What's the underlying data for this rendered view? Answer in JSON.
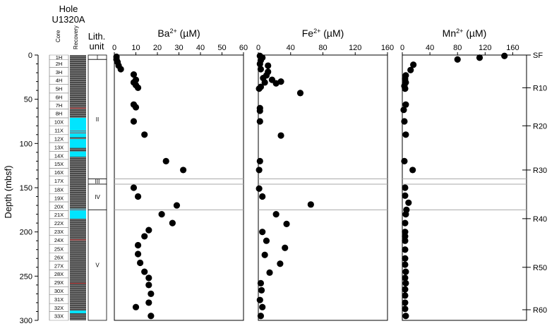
{
  "chart_data": {
    "type": "scatter",
    "hole_title_line1": "Hole",
    "hole_title_line2": "U1320A",
    "ylabel": "Depth (mbsf)",
    "ylim": [
      0,
      300
    ],
    "yticks": [
      "0",
      "50",
      "100",
      "150",
      "200",
      "250",
      "300"
    ],
    "column_headers": {
      "core": "Core",
      "recovery": "Recovery",
      "lith_line1": "Lith.",
      "lith_line2": "unit"
    },
    "cores": [
      {
        "label": "1H",
        "top": 0,
        "bottom": 5
      },
      {
        "label": "2H",
        "top": 5,
        "bottom": 14
      },
      {
        "label": "3H",
        "top": 14,
        "bottom": 24
      },
      {
        "label": "4H",
        "top": 24,
        "bottom": 33
      },
      {
        "label": "5H",
        "top": 33,
        "bottom": 43
      },
      {
        "label": "6H",
        "top": 43,
        "bottom": 52
      },
      {
        "label": "7H",
        "top": 52,
        "bottom": 61
      },
      {
        "label": "8H",
        "top": 61,
        "bottom": 71
      },
      {
        "label": "10X",
        "top": 71,
        "bottom": 80
      },
      {
        "label": "11X",
        "top": 80,
        "bottom": 90
      },
      {
        "label": "12X",
        "top": 90,
        "bottom": 99
      },
      {
        "label": "13X",
        "top": 99,
        "bottom": 109
      },
      {
        "label": "14X",
        "top": 109,
        "bottom": 118
      },
      {
        "label": "15X",
        "top": 118,
        "bottom": 128
      },
      {
        "label": "16X",
        "top": 128,
        "bottom": 137
      },
      {
        "label": "17X",
        "top": 137,
        "bottom": 147
      },
      {
        "label": "18X",
        "top": 147,
        "bottom": 157
      },
      {
        "label": "19X",
        "top": 157,
        "bottom": 166
      },
      {
        "label": "20X",
        "top": 166,
        "bottom": 176
      },
      {
        "label": "21X",
        "top": 176,
        "bottom": 185
      },
      {
        "label": "22X",
        "top": 185,
        "bottom": 195
      },
      {
        "label": "23X",
        "top": 195,
        "bottom": 204
      },
      {
        "label": "24X",
        "top": 204,
        "bottom": 214
      },
      {
        "label": "25X",
        "top": 214,
        "bottom": 224
      },
      {
        "label": "26X",
        "top": 224,
        "bottom": 233
      },
      {
        "label": "27X",
        "top": 233,
        "bottom": 243
      },
      {
        "label": "28X",
        "top": 243,
        "bottom": 252
      },
      {
        "label": "29X",
        "top": 252,
        "bottom": 262
      },
      {
        "label": "30X",
        "top": 262,
        "bottom": 271
      },
      {
        "label": "31X",
        "top": 271,
        "bottom": 281
      },
      {
        "label": "32X",
        "top": 281,
        "bottom": 290
      },
      {
        "label": "33X",
        "top": 290,
        "bottom": 300
      }
    ],
    "recovery_colors": {
      "core": "#4a4a4a",
      "stripe": "#bdbdbd",
      "disturbed": "#00e5ff",
      "accent": "#e03030"
    },
    "recovery_disturbed_intervals": [
      [
        71,
        87
      ],
      [
        87,
        93
      ],
      [
        95,
        105
      ],
      [
        109,
        115
      ],
      [
        174,
        185
      ],
      [
        289,
        292
      ]
    ],
    "lith_units": [
      {
        "label": "I",
        "top": 0,
        "bottom": 5
      },
      {
        "label": "II",
        "top": 5,
        "bottom": 140
      },
      {
        "label": "III",
        "top": 140,
        "bottom": 146
      },
      {
        "label": "IV",
        "top": 146,
        "bottom": 175
      },
      {
        "label": "V",
        "top": 175,
        "bottom": 300
      }
    ],
    "unit_boundaries": [
      140,
      146,
      175
    ],
    "panels": [
      {
        "title": "Ba",
        "title_sup": "2+",
        "title_unit": " (µM)",
        "xlim": [
          0,
          60
        ],
        "xticks": [
          "0",
          "10",
          "20",
          "30",
          "40",
          "50",
          "60"
        ],
        "points": [
          [
            1,
            2
          ],
          [
            1,
            5
          ],
          [
            1.5,
            8
          ],
          [
            2,
            12
          ],
          [
            3,
            16
          ],
          [
            9,
            22
          ],
          [
            10,
            28
          ],
          [
            9,
            31
          ],
          [
            10,
            34
          ],
          [
            11,
            37
          ],
          [
            9,
            56
          ],
          [
            10,
            59
          ],
          [
            9,
            75
          ],
          [
            14,
            90
          ],
          [
            24,
            120
          ],
          [
            32,
            130
          ],
          [
            9,
            150
          ],
          [
            11,
            160
          ],
          [
            29,
            170
          ],
          [
            22,
            180
          ],
          [
            27,
            190
          ],
          [
            16,
            198
          ],
          [
            14,
            205
          ],
          [
            11,
            215
          ],
          [
            11,
            225
          ],
          [
            12,
            235
          ],
          [
            14,
            245
          ],
          [
            16,
            252
          ],
          [
            16,
            260
          ],
          [
            17,
            270
          ],
          [
            16,
            280
          ],
          [
            10,
            285
          ],
          [
            17,
            295
          ]
        ]
      },
      {
        "title": "Fe",
        "title_sup": "2+",
        "title_unit": " (µM)",
        "xlim": [
          0,
          160
        ],
        "xticks": [
          "0",
          "40",
          "80",
          "120",
          "160"
        ],
        "points": [
          [
            2,
            1
          ],
          [
            5,
            3
          ],
          [
            3,
            6
          ],
          [
            2,
            10
          ],
          [
            12,
            12
          ],
          [
            3,
            16
          ],
          [
            12,
            19
          ],
          [
            10,
            23
          ],
          [
            6,
            26
          ],
          [
            17,
            28
          ],
          [
            8,
            31
          ],
          [
            22,
            32
          ],
          [
            28,
            30
          ],
          [
            3,
            36
          ],
          [
            1,
            38
          ],
          [
            52,
            43
          ],
          [
            2,
            60
          ],
          [
            2,
            63
          ],
          [
            2,
            75
          ],
          [
            28,
            91
          ],
          [
            2,
            120
          ],
          [
            1,
            130
          ],
          [
            1,
            151
          ],
          [
            5,
            160
          ],
          [
            65,
            169
          ],
          [
            22,
            180
          ],
          [
            35,
            191
          ],
          [
            5,
            200
          ],
          [
            10,
            210
          ],
          [
            33,
            218
          ],
          [
            8,
            226
          ],
          [
            27,
            236
          ],
          [
            14,
            246
          ],
          [
            3,
            258
          ],
          [
            4,
            266
          ],
          [
            2,
            277
          ],
          [
            5,
            285
          ],
          [
            3,
            295
          ]
        ]
      },
      {
        "title": "Mn",
        "title_sup": "2+",
        "title_unit": " (µM)",
        "xlim": [
          0,
          180
        ],
        "xticks": [
          "0",
          "40",
          "80",
          "120",
          "160"
        ],
        "points": [
          [
            148,
            1
          ],
          [
            112,
            3
          ],
          [
            80,
            5
          ],
          [
            16,
            11
          ],
          [
            12,
            17
          ],
          [
            5,
            23
          ],
          [
            4,
            27
          ],
          [
            5,
            31
          ],
          [
            3,
            35
          ],
          [
            4,
            38
          ],
          [
            5,
            56
          ],
          [
            2,
            62
          ],
          [
            3,
            75
          ],
          [
            5,
            90
          ],
          [
            3,
            120
          ],
          [
            15,
            130
          ],
          [
            4,
            150
          ],
          [
            4,
            159
          ],
          [
            9,
            167
          ],
          [
            6,
            175
          ],
          [
            5,
            180
          ],
          [
            4,
            190
          ],
          [
            4,
            200
          ],
          [
            4,
            205
          ],
          [
            4,
            210
          ],
          [
            4,
            220
          ],
          [
            4,
            230
          ],
          [
            4,
            237
          ],
          [
            5,
            245
          ],
          [
            4,
            252
          ],
          [
            5,
            258
          ],
          [
            4,
            265
          ],
          [
            4,
            272
          ],
          [
            4,
            280
          ],
          [
            4,
            287
          ],
          [
            5,
            295
          ]
        ]
      }
    ],
    "right_markers": [
      {
        "label": "SF",
        "depth": 0
      },
      {
        "label": "R10",
        "depth": 37
      },
      {
        "label": "R20",
        "depth": 80
      },
      {
        "label": "R30",
        "depth": 130
      },
      {
        "label": "R40",
        "depth": 185
      },
      {
        "label": "R50",
        "depth": 240
      },
      {
        "label": "R60",
        "depth": 288
      }
    ]
  }
}
